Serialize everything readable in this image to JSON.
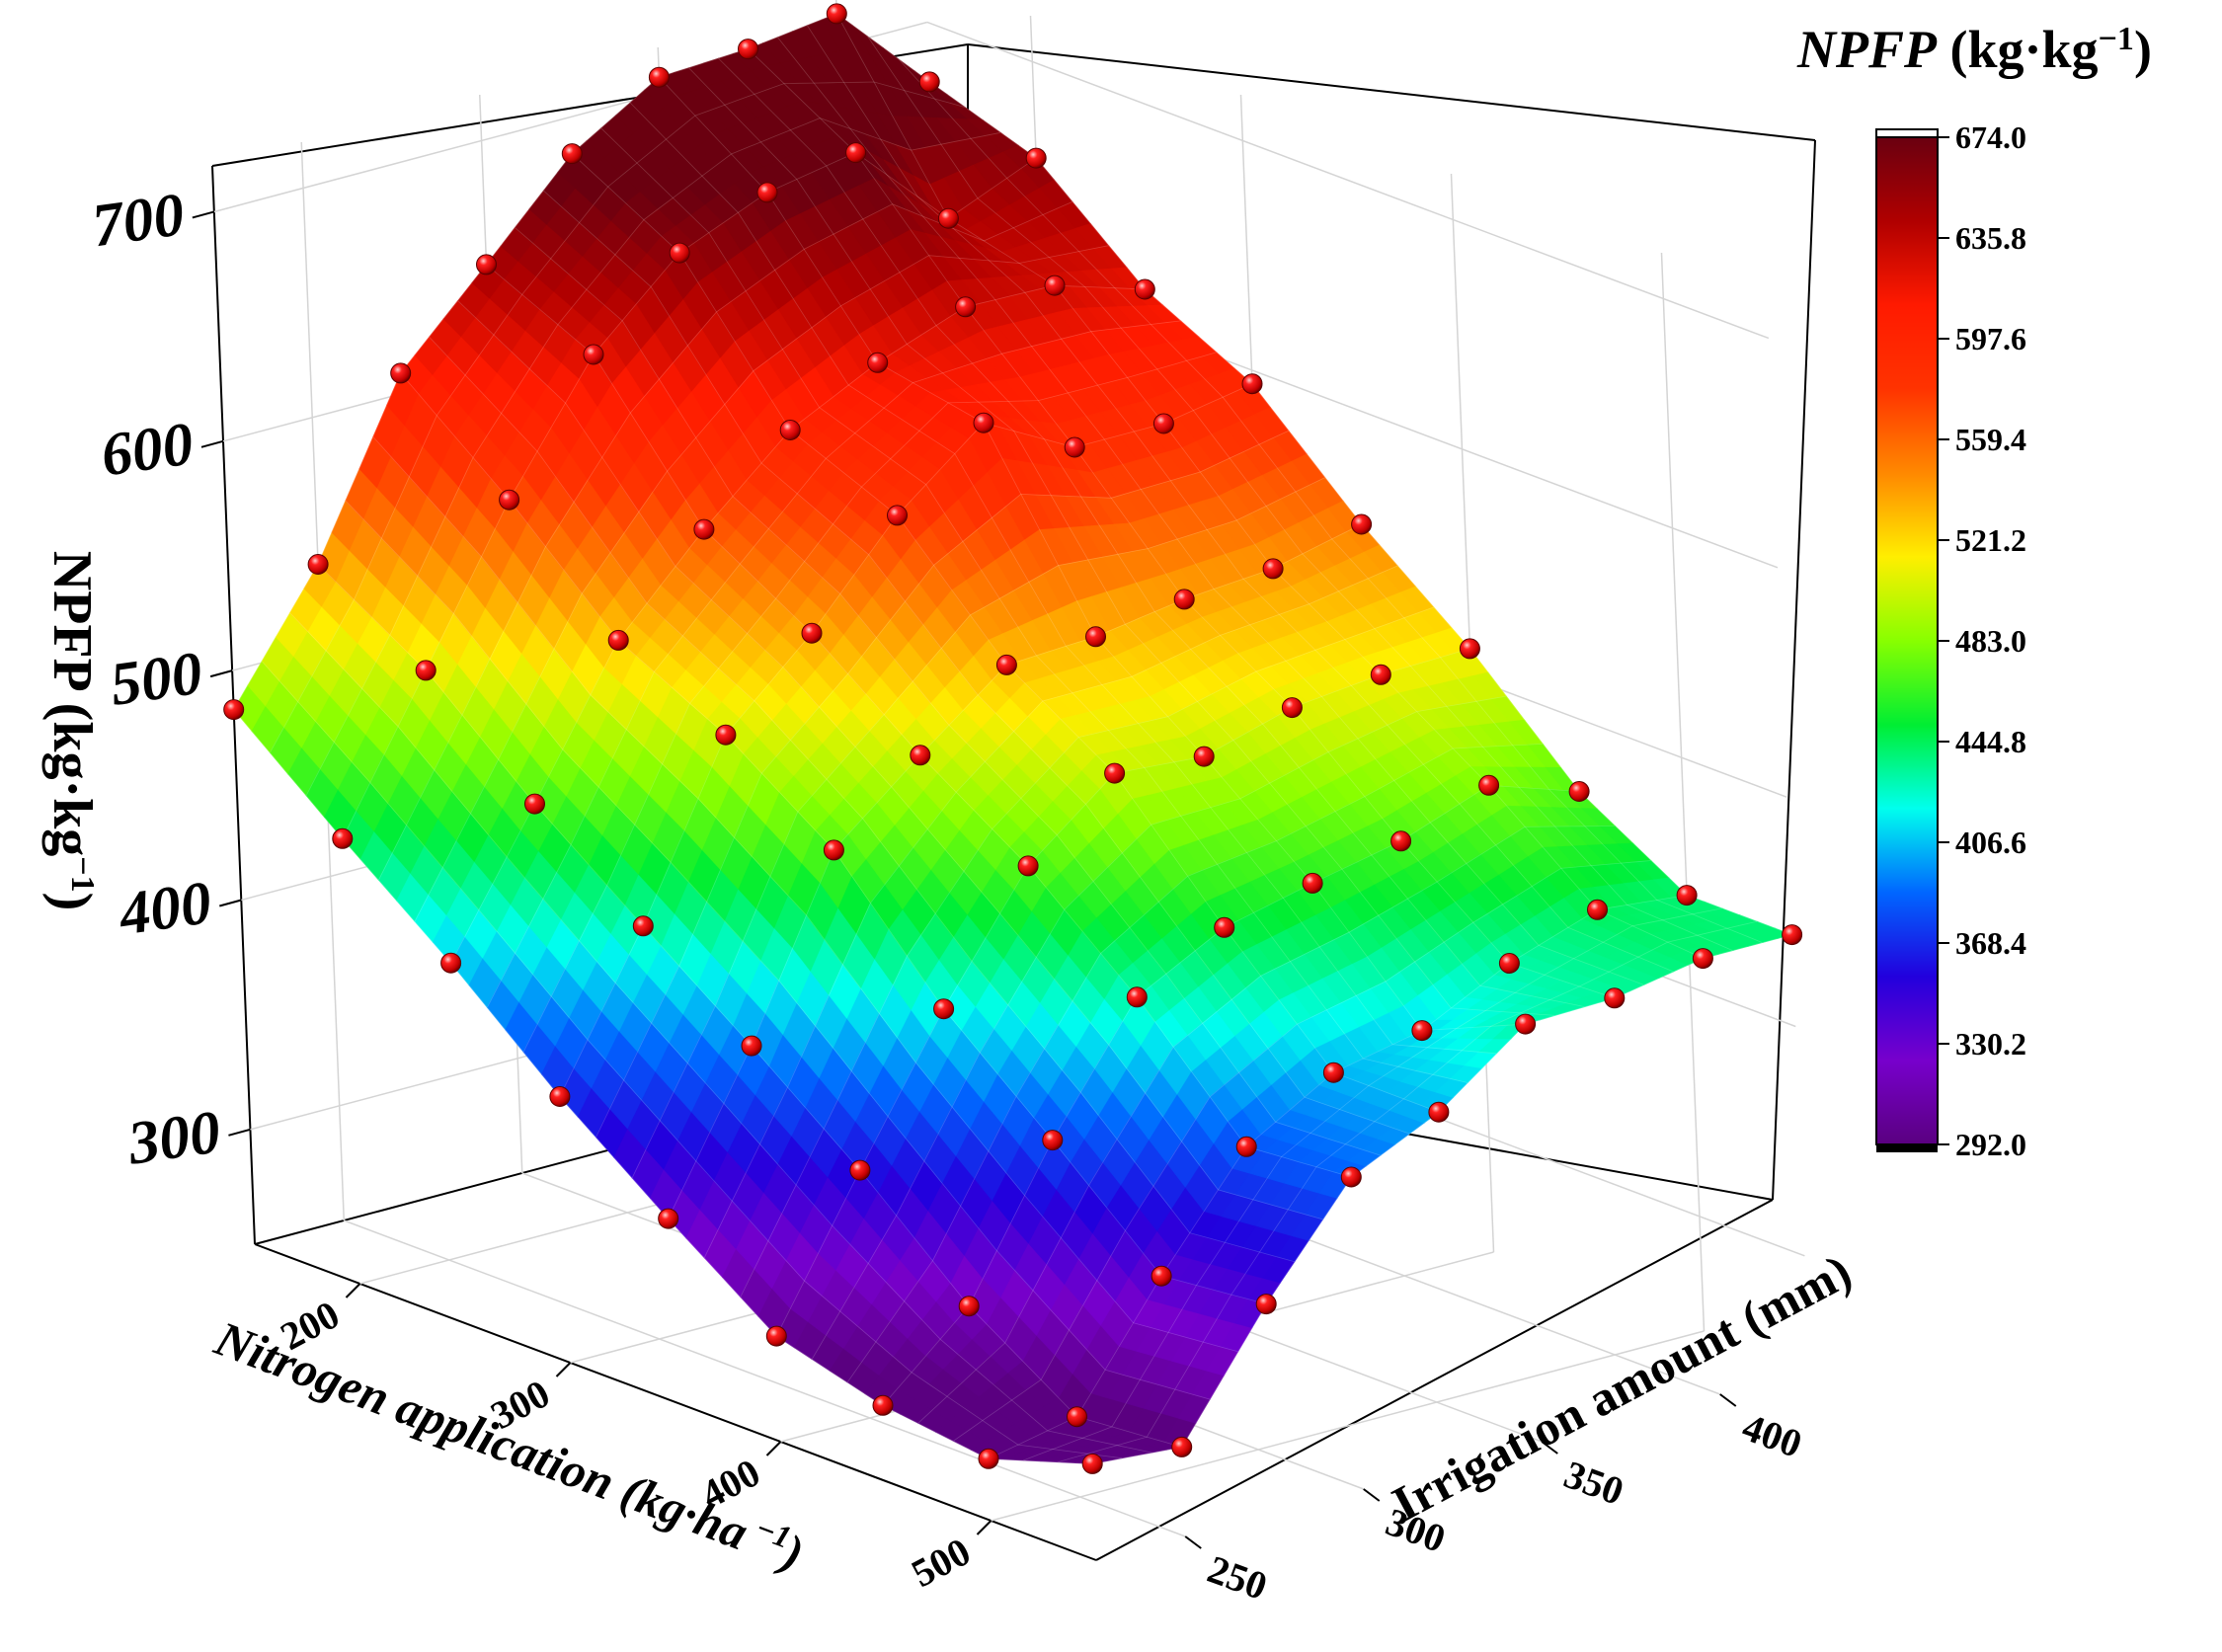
{
  "chart_data": {
    "type": "surface3d",
    "z_axis": {
      "label_main": "NPFP (kg·kg",
      "label_sup": "−1",
      "label_end": ")",
      "ticks": [
        "700",
        "600",
        "500",
        "400",
        "300"
      ]
    },
    "x_axis": {
      "label": "Nitrogen application (kg·ha",
      "label_sup": " −1",
      "label_end": ")",
      "ticks": [
        "200",
        "300",
        "400",
        "500"
      ]
    },
    "y_axis": {
      "label": "Irrigation amount (mm)",
      "ticks": [
        "250",
        "300",
        "350",
        "400"
      ]
    },
    "colorbar": {
      "title_italic": "NPFP",
      "title_rest": " (kg·kg",
      "title_sup": "−1",
      "title_end": ")",
      "ticks": [
        "674.0",
        "635.8",
        "597.6",
        "559.4",
        "521.2",
        "483.0",
        "444.8",
        "406.6",
        "368.4",
        "330.2",
        "292.0"
      ],
      "colors": [
        "#6a0010",
        "#b00000",
        "#ff1a00",
        "#ff3300",
        "#ff8800",
        "#ffee00",
        "#88ff00",
        "#00ee33",
        "#00ffee",
        "#0066ff",
        "#2200dd",
        "#7700cc",
        "#5a0080"
      ],
      "range": [
        292.0,
        674.0
      ]
    },
    "nitrogen_levels": [
      150,
      200,
      250,
      300,
      350,
      400,
      450,
      500,
      550
    ],
    "irrigation_levels": [
      225,
      250,
      275,
      300,
      325,
      350,
      375,
      400,
      425
    ],
    "npfp_grid": [
      [
        483,
        536,
        609,
        646,
        684,
        707,
        709,
        714,
        674
      ],
      [
        444,
        507,
        571,
        624,
        658,
        674,
        681,
        642,
        658
      ],
      [
        407,
        466,
        527,
        565,
        598,
        617,
        631,
        630,
        618
      ],
      [
        366,
        430,
        503,
        537,
        578,
        608,
        587,
        587,
        594
      ],
      [
        330,
        395,
        470,
        501,
        530,
        532,
        538,
        541,
        550
      ],
      [
        296,
        358,
        418,
        470,
        500,
        497,
        508,
        512,
        513
      ],
      [
        283,
        316,
        378,
        430,
        450,
        459,
        467,
        481,
        468
      ],
      [
        277,
        285,
        336,
        382,
        404,
        412,
        431,
        444,
        440
      ],
      [
        292,
        289,
        341,
        386,
        404,
        432,
        433,
        440,
        440
      ]
    ]
  }
}
